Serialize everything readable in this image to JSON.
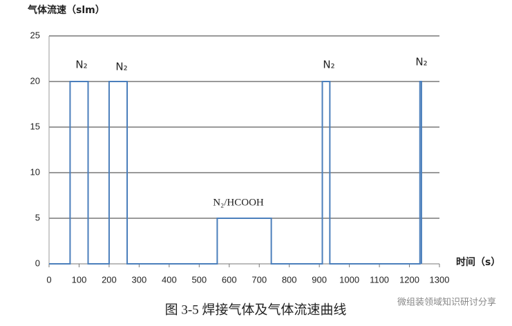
{
  "chart_data": {
    "type": "line",
    "title": "气体流速（slm）",
    "x_label": "时间（s）",
    "caption": "图 3-5  焊接气体及气体流速曲线",
    "watermark": "微组装领域知识研讨分享",
    "x": [
      0,
      70,
      70,
      130,
      130,
      200,
      200,
      260,
      260,
      560,
      560,
      740,
      740,
      910,
      910,
      935,
      935,
      1235,
      1235,
      1240,
      1240
    ],
    "series": [
      {
        "color": "#4a7ebb",
        "values": [
          0,
          0,
          20,
          20,
          0,
          0,
          20,
          20,
          0,
          0,
          5,
          5,
          0,
          0,
          20,
          20,
          0,
          0,
          20,
          20,
          0
        ]
      }
    ],
    "annotations": [
      "N₂",
      "N₂",
      "N₂/HCOOH",
      "N₂",
      "N₂"
    ],
    "xlim": [
      0,
      1300
    ],
    "xticks": [
      0,
      100,
      200,
      300,
      400,
      500,
      600,
      700,
      800,
      900,
      1000,
      1100,
      1200,
      1300
    ],
    "ylim": [
      0,
      25
    ],
    "yticks": [
      0,
      5,
      10,
      15,
      20,
      25
    ],
    "grid": true
  }
}
